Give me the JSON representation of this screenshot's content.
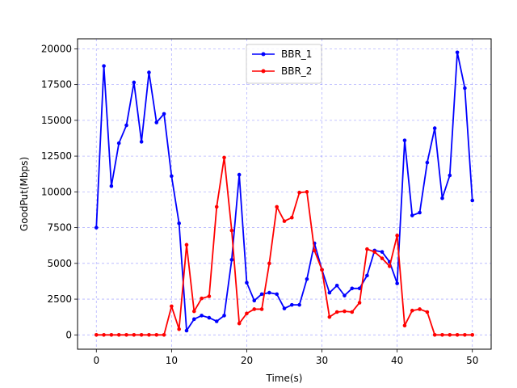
{
  "chart_data": {
    "type": "line",
    "title": "",
    "xlabel": "Time(s)",
    "ylabel": "GoodPut(Mbps)",
    "xlim": [
      -2.5,
      52.5
    ],
    "ylim": [
      -1000,
      20700
    ],
    "xticks": [
      0,
      10,
      20,
      30,
      40,
      50
    ],
    "yticks": [
      0,
      2500,
      5000,
      7500,
      10000,
      12500,
      15000,
      17500,
      20000
    ],
    "grid": true,
    "legend_position": "top-center",
    "colors": {
      "BBR_1": "#0000ff",
      "BBR_2": "#ff0000",
      "grid": "#0000ff"
    },
    "x": [
      0,
      1,
      2,
      3,
      4,
      5,
      6,
      7,
      8,
      9,
      10,
      11,
      12,
      13,
      14,
      15,
      16,
      17,
      18,
      19,
      20,
      21,
      22,
      23,
      24,
      25,
      26,
      27,
      28,
      29,
      30,
      31,
      32,
      33,
      34,
      35,
      36,
      37,
      38,
      39,
      40,
      41,
      42,
      43,
      44,
      45,
      46,
      47,
      48,
      49,
      50
    ],
    "series": [
      {
        "name": "BBR_1",
        "values": [
          7500,
          18800,
          10400,
          13400,
          14650,
          17650,
          13500,
          18350,
          14850,
          15450,
          11100,
          7800,
          300,
          1100,
          1350,
          1200,
          950,
          1350,
          5250,
          11200,
          3650,
          2400,
          2850,
          2950,
          2850,
          1850,
          2100,
          2100,
          3900,
          6400,
          4550,
          2950,
          3450,
          2750,
          3250,
          3250,
          4150,
          5900,
          5800,
          5100,
          3600,
          13600,
          8350,
          8550,
          12050,
          14450,
          9550,
          11150,
          19750,
          17250,
          9400
        ]
      },
      {
        "name": "BBR_2",
        "values": [
          0,
          0,
          0,
          0,
          0,
          0,
          0,
          0,
          0,
          0,
          2000,
          400,
          6300,
          1650,
          2550,
          2700,
          8950,
          12400,
          7300,
          800,
          1500,
          1800,
          1800,
          5000,
          8950,
          7950,
          8200,
          9950,
          10000,
          5900,
          4550,
          1250,
          1600,
          1650,
          1600,
          2250,
          6000,
          5800,
          5350,
          4800,
          6950,
          650,
          1700,
          1800,
          1600,
          0,
          0,
          0,
          0,
          0,
          0
        ]
      }
    ]
  }
}
